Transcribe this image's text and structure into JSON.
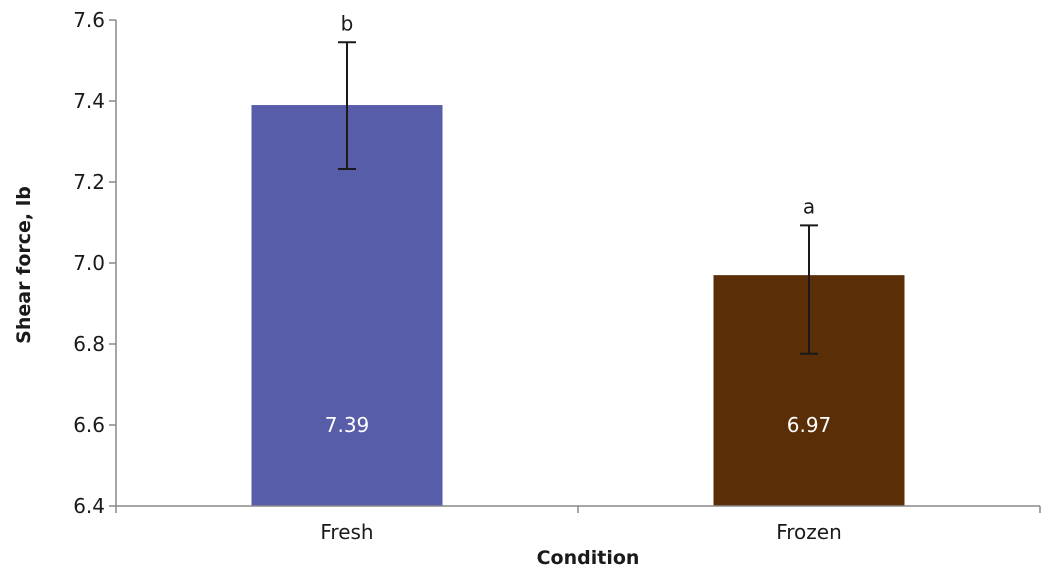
{
  "chart_data": {
    "type": "bar",
    "categories": [
      "Fresh",
      "Frozen"
    ],
    "values": [
      7.39,
      6.97
    ],
    "value_labels": [
      "7.39",
      "6.97"
    ],
    "error_upper": [
      7.545,
      7.093
    ],
    "error_lower": [
      7.232,
      6.776
    ],
    "significance_letters": [
      "b",
      "a"
    ],
    "colors": [
      "#575DA9",
      "#5A2E06"
    ],
    "xlabel": "Condition",
    "ylabel": "Shear force, lb",
    "ylim": [
      6.4,
      7.6
    ],
    "yticks": [
      "6.4",
      "6.6",
      "6.8",
      "7.0",
      "7.2",
      "7.4",
      "7.6"
    ],
    "grid": false,
    "legend": "none"
  }
}
